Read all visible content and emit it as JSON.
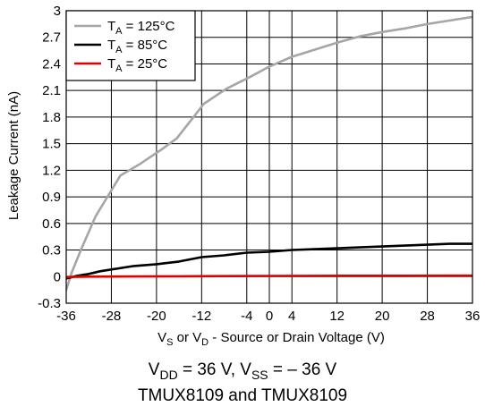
{
  "chart_data": {
    "type": "line",
    "title": "",
    "xlabel": {
      "parts": [
        {
          "t": "V"
        },
        {
          "t": "S",
          "sub": true
        },
        {
          "t": " or V"
        },
        {
          "t": "D",
          "sub": true
        },
        {
          "t": " - Source or Drain Voltage (V)"
        }
      ]
    },
    "ylabel": "Leakage Current (nA)",
    "xlim": [
      -36,
      36
    ],
    "ylim": [
      -0.3,
      3
    ],
    "xticks": [
      -36,
      -28,
      -20,
      -12,
      -4,
      0,
      4,
      12,
      20,
      28,
      36
    ],
    "xtick_labels": [
      "-36",
      "-28",
      "-20",
      "-12",
      "-4",
      "0",
      "4",
      "12",
      "20",
      "28",
      "36"
    ],
    "yticks": [
      -0.3,
      0,
      0.3,
      0.6,
      0.9,
      1.2,
      1.5,
      1.8,
      2.1,
      2.4,
      2.7,
      3
    ],
    "ytick_labels": [
      "-0.3",
      "0",
      "0.3",
      "0.6",
      "0.9",
      "1.2",
      "1.5",
      "1.8",
      "2.1",
      "2.4",
      "2.7",
      "3"
    ],
    "grid": true,
    "legend_position": "top-left",
    "series": [
      {
        "name": "125°C",
        "legend_prefix": "T",
        "legend_sub": "A",
        "legend_suffix": " = 125°C",
        "color": "#a6a6a6",
        "x": [
          -37,
          -36,
          -35,
          -33.4,
          -30.8,
          -26.4,
          -23.2,
          -19.2,
          -16.4,
          -11.6,
          -7.6,
          -3.2,
          0,
          4,
          8,
          12,
          16,
          20,
          24,
          28,
          32,
          36
        ],
        "y": [
          -0.3,
          -0.15,
          0.05,
          0.3,
          0.68,
          1.14,
          1.26,
          1.43,
          1.56,
          1.95,
          2.12,
          2.26,
          2.37,
          2.48,
          2.56,
          2.64,
          2.71,
          2.76,
          2.8,
          2.85,
          2.89,
          2.93
        ]
      },
      {
        "name": "85°C",
        "legend_prefix": "T",
        "legend_sub": "A",
        "legend_suffix": " = 85°C",
        "color": "#000000",
        "x": [
          -37,
          -36,
          -34,
          -32,
          -30,
          -28,
          -24,
          -20,
          -16,
          -12,
          -8,
          -4,
          0,
          4,
          8,
          12,
          16,
          20,
          24,
          28,
          32,
          36
        ],
        "y": [
          -0.03,
          -0.02,
          0.01,
          0.03,
          0.06,
          0.08,
          0.12,
          0.14,
          0.17,
          0.22,
          0.24,
          0.27,
          0.28,
          0.3,
          0.31,
          0.32,
          0.33,
          0.34,
          0.35,
          0.36,
          0.37,
          0.37
        ]
      },
      {
        "name": "25°C",
        "legend_prefix": "T",
        "legend_sub": "A",
        "legend_suffix": " = 25°C",
        "color": "#e00000",
        "x": [
          -37,
          -32,
          -24,
          -16,
          -8,
          0,
          8,
          16,
          24,
          32,
          36
        ],
        "y": [
          -0.005,
          0.0,
          0.002,
          0.004,
          0.006,
          0.008,
          0.009,
          0.01,
          0.01,
          0.011,
          0.011
        ]
      }
    ]
  },
  "captions": {
    "line1": [
      {
        "t": "V"
      },
      {
        "t": "DD",
        "sub": true
      },
      {
        "t": " = 36 V, V"
      },
      {
        "t": "SS",
        "sub": true
      },
      {
        "t": " = – 36 V"
      }
    ],
    "line2": "TMUX8109 and TMUX8109"
  }
}
